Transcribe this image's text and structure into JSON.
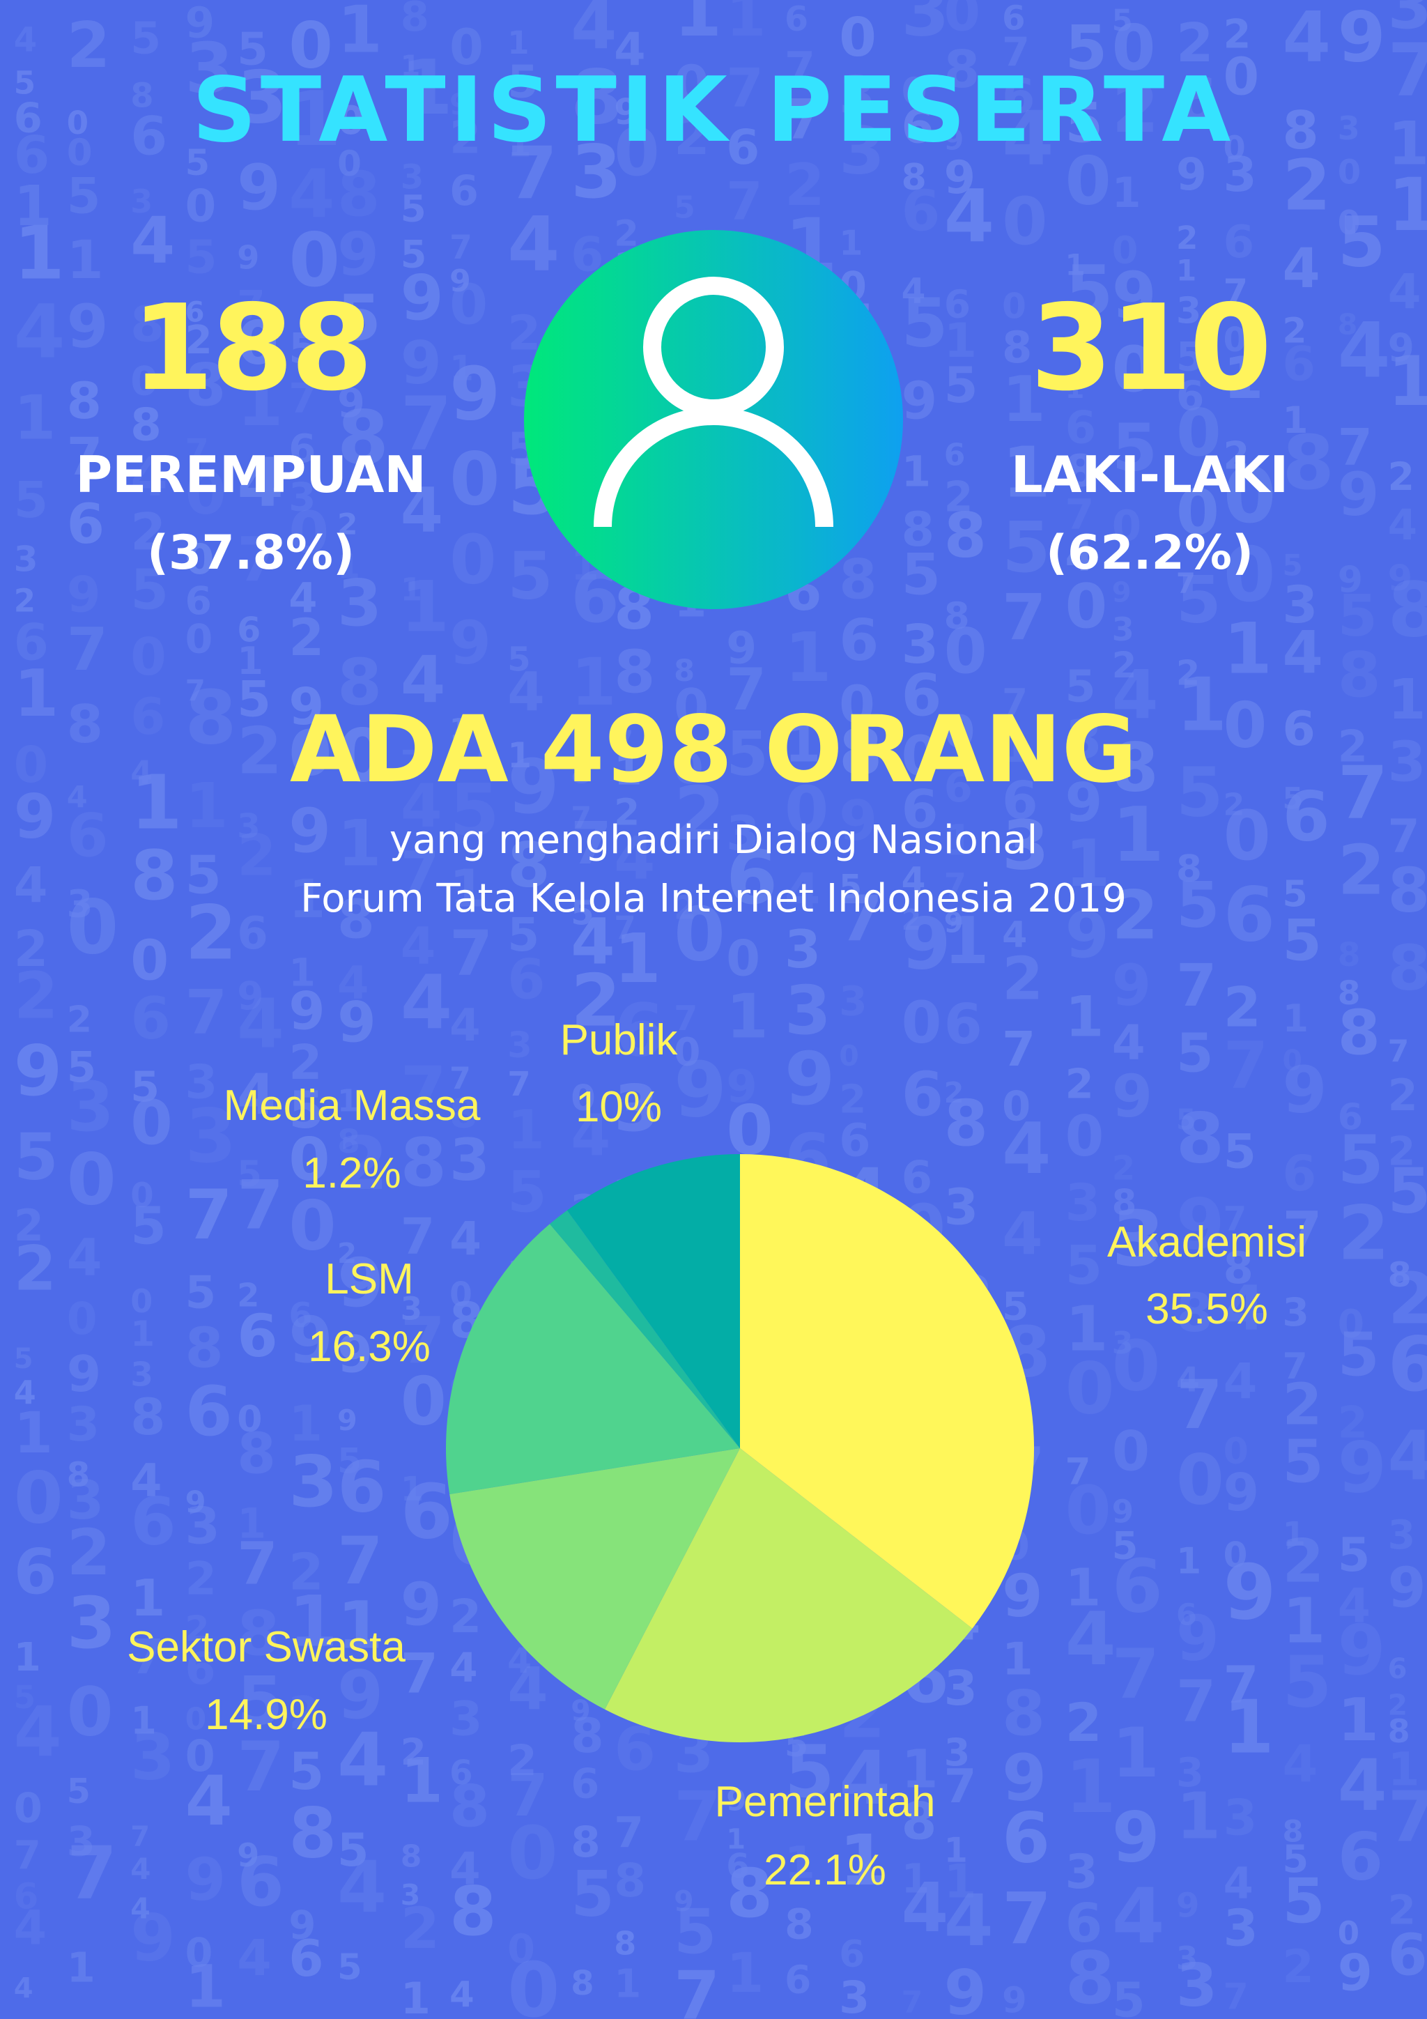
{
  "title": "STATISTIK PESERTA",
  "female": {
    "count": "188",
    "label": "PEREMPUAN",
    "pct": "(37.8%)"
  },
  "male": {
    "count": "310",
    "label": "LAKI-LAKI",
    "pct": "(62.2%)"
  },
  "total_heading": "ADA 498 ORANG",
  "subtitle_line1": "yang menghadiri Dialog Nasional",
  "subtitle_line2": "Forum Tata Kelola Internet Indonesia 2019",
  "icons": {
    "person": "person-icon"
  },
  "colors": {
    "background": "#4e6be9",
    "title": "#35e3ff",
    "accent": "#fff45c",
    "circle_gradient_start": "#00e87a",
    "circle_gradient_end": "#0ea0f0"
  },
  "chart_data": {
    "type": "pie",
    "start": "12 o'clock, clockwise",
    "slices": [
      {
        "name": "Akademisi",
        "value": 35.5,
        "label": "35.5%",
        "color": "#fff75a"
      },
      {
        "name": "Pemerintah",
        "value": 22.1,
        "label": "22.1%",
        "color": "#c3ef64"
      },
      {
        "name": "Sektor Swasta",
        "value": 14.9,
        "label": "14.9%",
        "color": "#86e37a"
      },
      {
        "name": "LSM",
        "value": 16.3,
        "label": "16.3%",
        "color": "#50d38e"
      },
      {
        "name": "Media Massa",
        "value": 1.2,
        "label": "1.2%",
        "color": "#1fbb9f"
      },
      {
        "name": "Publik",
        "value": 10,
        "label": "10%",
        "color": "#03ada6"
      }
    ]
  }
}
